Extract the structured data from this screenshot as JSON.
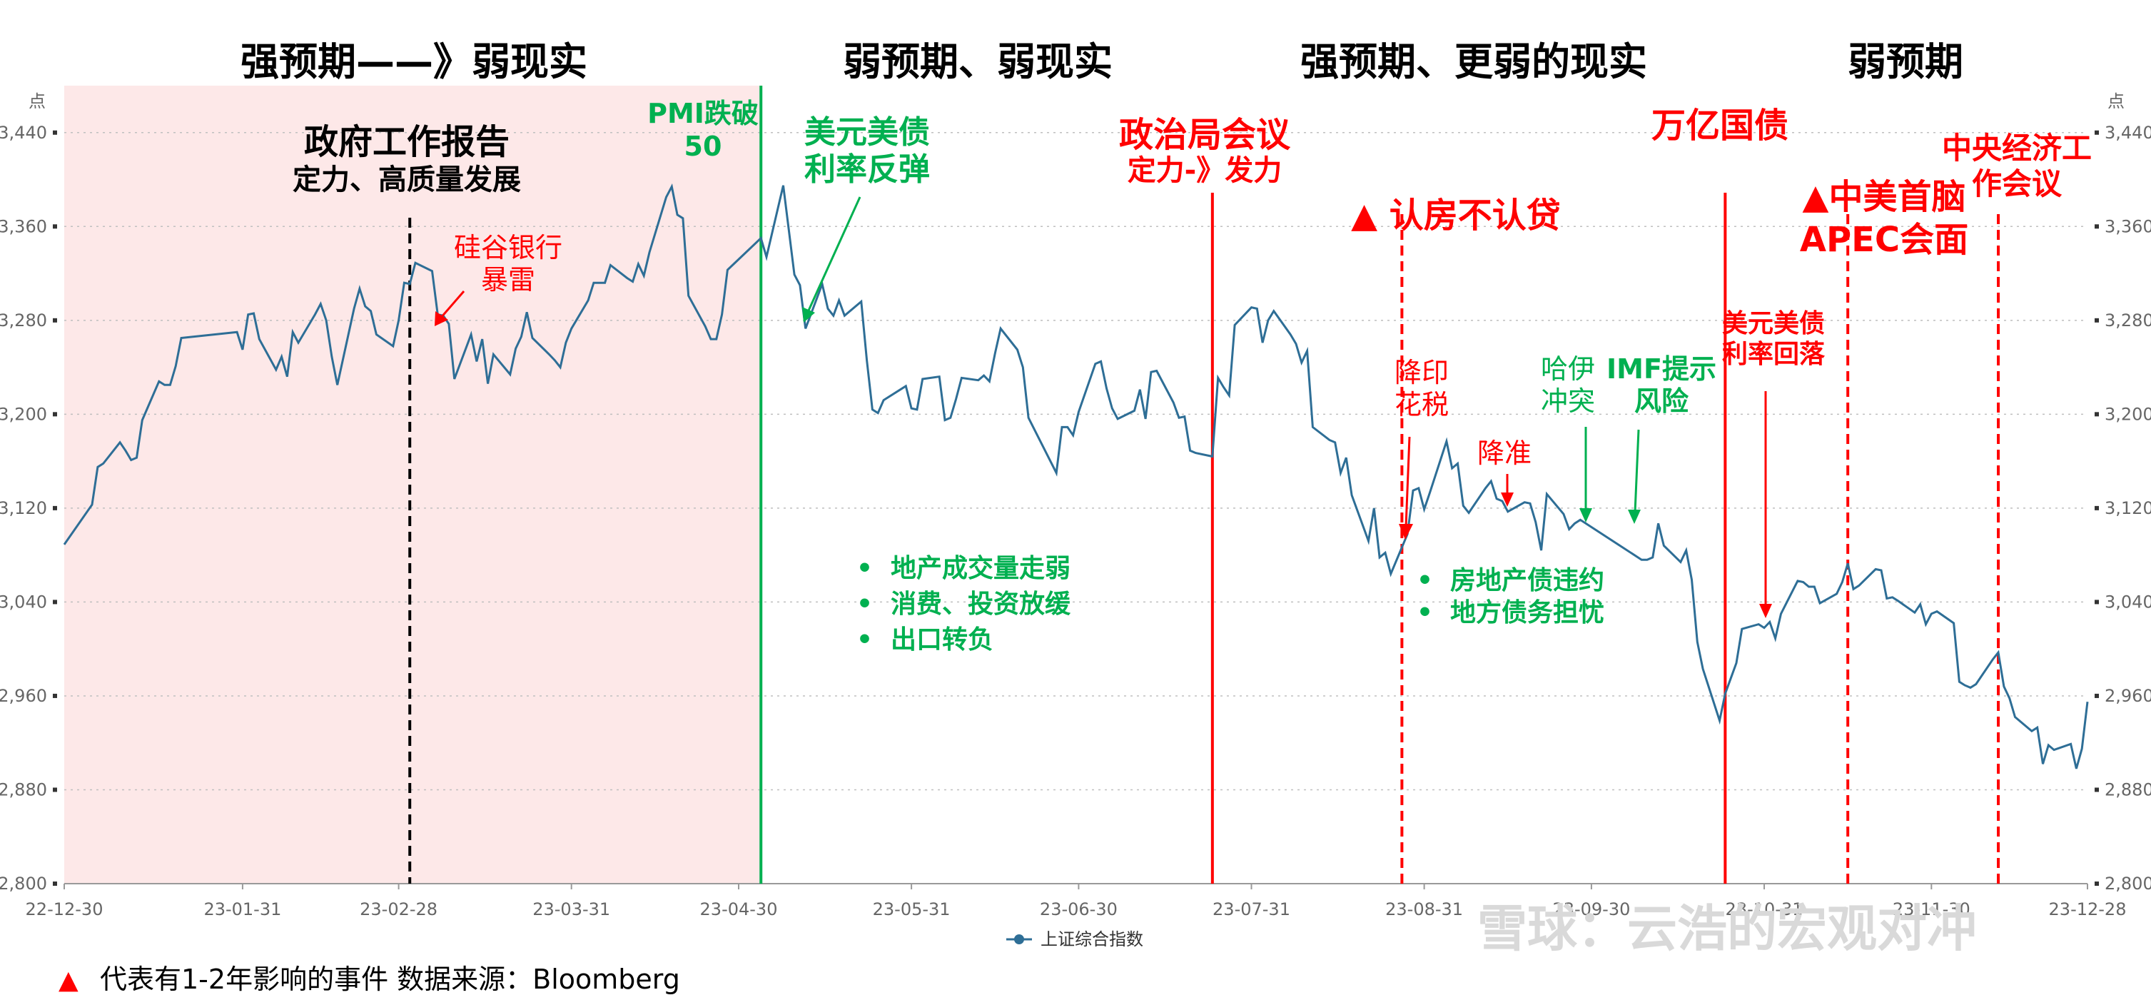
{
  "phases": [
    {
      "label": "强预期——》弱现实"
    },
    {
      "label": "弱预期、弱现实"
    },
    {
      "label": "强预期、更弱的现实"
    },
    {
      "label": "弱预期"
    }
  ],
  "annotations": {
    "gov_report_1": "政府工作报告",
    "gov_report_2": "定力、高质量发展",
    "svb_1": "硅谷银行",
    "svb_2": "暴雷",
    "pmi_1": "PMI跌破",
    "pmi_2": "50",
    "usd_rebound_1": "美元美债",
    "usd_rebound_2": "利率反弹",
    "politburo_1": "政治局会议",
    "politburo_2": "定力-》发力",
    "housing": "▲ 认房不认贷",
    "stamp_1": "降印",
    "stamp_2": "花税",
    "rrr": "降准",
    "hamas_1": "哈伊",
    "hamas_2": "冲突",
    "imf_1": "IMF提示",
    "imf_2": "风险",
    "trillion": "万亿国债",
    "usd_fall_1": "美元美债",
    "usd_fall_2": "利率回落",
    "apec_1": "▲中美首脑",
    "apec_2": "APEC会面",
    "cewc_1": "中央经济工",
    "cewc_2": "作会议",
    "bullets_mid": [
      "地产成交量走弱",
      "消费、投资放缓",
      "出口转负"
    ],
    "bullets_right": [
      "房地产债违约",
      "地方债务担忧"
    ],
    "bullet_symbol": "•"
  },
  "footer": {
    "marker": "▲",
    "note": "代表有1-2年影响的事件 数据来源：Bloomberg"
  },
  "watermark": "雪球：云浩的宏观对冲",
  "colors": {
    "line": "#2e6e96",
    "red": "#ff0000",
    "green": "#00b050",
    "shade": "#fde8e8",
    "grid": "#bfbfbf"
  },
  "chart_data": {
    "type": "line",
    "series": [
      {
        "name": "上证综合指数",
        "points": [
          [
            "2022-12-30",
            3089
          ],
          [
            "2023-01-04",
            3123
          ],
          [
            "2023-01-05",
            3155
          ],
          [
            "2023-01-06",
            3158
          ],
          [
            "2023-01-09",
            3176
          ],
          [
            "2023-01-10",
            3169
          ],
          [
            "2023-01-11",
            3161
          ],
          [
            "2023-01-12",
            3163
          ],
          [
            "2023-01-13",
            3195
          ],
          [
            "2023-01-16",
            3228
          ],
          [
            "2023-01-17",
            3225
          ],
          [
            "2023-01-18",
            3225
          ],
          [
            "2023-01-19",
            3241
          ],
          [
            "2023-01-20",
            3265
          ],
          [
            "2023-01-30",
            3270
          ],
          [
            "2023-01-31",
            3255
          ],
          [
            "2023-02-01",
            3285
          ],
          [
            "2023-02-02",
            3286
          ],
          [
            "2023-02-03",
            3264
          ],
          [
            "2023-02-06",
            3238
          ],
          [
            "2023-02-07",
            3249
          ],
          [
            "2023-02-08",
            3232
          ],
          [
            "2023-02-09",
            3270
          ],
          [
            "2023-02-10",
            3261
          ],
          [
            "2023-02-13",
            3285
          ],
          [
            "2023-02-14",
            3294
          ],
          [
            "2023-02-15",
            3280
          ],
          [
            "2023-02-16",
            3249
          ],
          [
            "2023-02-17",
            3225
          ],
          [
            "2023-02-20",
            3290
          ],
          [
            "2023-02-21",
            3307
          ],
          [
            "2023-02-22",
            3292
          ],
          [
            "2023-02-23",
            3288
          ],
          [
            "2023-02-24",
            3268
          ],
          [
            "2023-02-27",
            3258
          ],
          [
            "2023-02-28",
            3280
          ],
          [
            "2023-03-01",
            3312
          ],
          [
            "2023-03-02",
            3311
          ],
          [
            "2023-03-03",
            3329
          ],
          [
            "2023-03-06",
            3322
          ],
          [
            "2023-03-07",
            3285
          ],
          [
            "2023-03-08",
            3284
          ],
          [
            "2023-03-09",
            3277
          ],
          [
            "2023-03-10",
            3230
          ],
          [
            "2023-03-13",
            3268
          ],
          [
            "2023-03-14",
            3245
          ],
          [
            "2023-03-15",
            3264
          ],
          [
            "2023-03-16",
            3226
          ],
          [
            "2023-03-17",
            3251
          ],
          [
            "2023-03-20",
            3234
          ],
          [
            "2023-03-21",
            3256
          ],
          [
            "2023-03-22",
            3266
          ],
          [
            "2023-03-23",
            3287
          ],
          [
            "2023-03-24",
            3265
          ],
          [
            "2023-03-27",
            3251
          ],
          [
            "2023-03-28",
            3246
          ],
          [
            "2023-03-29",
            3240
          ],
          [
            "2023-03-30",
            3261
          ],
          [
            "2023-03-31",
            3273
          ],
          [
            "2023-04-03",
            3297
          ],
          [
            "2023-04-04",
            3312
          ],
          [
            "2023-04-06",
            3312
          ],
          [
            "2023-04-07",
            3327
          ],
          [
            "2023-04-10",
            3316
          ],
          [
            "2023-04-11",
            3313
          ],
          [
            "2023-04-12",
            3328
          ],
          [
            "2023-04-13",
            3318
          ],
          [
            "2023-04-14",
            3338
          ],
          [
            "2023-04-17",
            3385
          ],
          [
            "2023-04-18",
            3394
          ],
          [
            "2023-04-19",
            3370
          ],
          [
            "2023-04-20",
            3367
          ],
          [
            "2023-04-21",
            3301
          ],
          [
            "2023-04-24",
            3275
          ],
          [
            "2023-04-25",
            3264
          ],
          [
            "2023-04-26",
            3264
          ],
          [
            "2023-04-27",
            3285
          ],
          [
            "2023-04-28",
            3323
          ],
          [
            "2023-05-04",
            3350
          ],
          [
            "2023-05-05",
            3334
          ],
          [
            "2023-05-08",
            3395
          ],
          [
            "2023-05-09",
            3357
          ],
          [
            "2023-05-10",
            3319
          ],
          [
            "2023-05-11",
            3310
          ],
          [
            "2023-05-12",
            3273
          ],
          [
            "2023-05-15",
            3311
          ],
          [
            "2023-05-16",
            3290
          ],
          [
            "2023-05-17",
            3284
          ],
          [
            "2023-05-18",
            3297
          ],
          [
            "2023-05-19",
            3284
          ],
          [
            "2023-05-22",
            3296
          ],
          [
            "2023-05-23",
            3246
          ],
          [
            "2023-05-24",
            3204
          ],
          [
            "2023-05-25",
            3201
          ],
          [
            "2023-05-26",
            3212
          ],
          [
            "2023-05-29",
            3221
          ],
          [
            "2023-05-30",
            3224
          ],
          [
            "2023-05-31",
            3205
          ],
          [
            "2023-06-01",
            3204
          ],
          [
            "2023-06-02",
            3230
          ],
          [
            "2023-06-05",
            3232
          ],
          [
            "2023-06-06",
            3195
          ],
          [
            "2023-06-07",
            3197
          ],
          [
            "2023-06-08",
            3213
          ],
          [
            "2023-06-09",
            3231
          ],
          [
            "2023-06-12",
            3229
          ],
          [
            "2023-06-13",
            3233
          ],
          [
            "2023-06-14",
            3228
          ],
          [
            "2023-06-15",
            3252
          ],
          [
            "2023-06-16",
            3273
          ],
          [
            "2023-06-19",
            3255
          ],
          [
            "2023-06-20",
            3240
          ],
          [
            "2023-06-21",
            3197
          ],
          [
            "2023-06-26",
            3150
          ],
          [
            "2023-06-27",
            3189
          ],
          [
            "2023-06-28",
            3189
          ],
          [
            "2023-06-29",
            3182
          ],
          [
            "2023-06-30",
            3202
          ],
          [
            "2023-07-03",
            3243
          ],
          [
            "2023-07-04",
            3245
          ],
          [
            "2023-07-05",
            3222
          ],
          [
            "2023-07-06",
            3205
          ],
          [
            "2023-07-07",
            3196
          ],
          [
            "2023-07-10",
            3203
          ],
          [
            "2023-07-11",
            3221
          ],
          [
            "2023-07-12",
            3196
          ],
          [
            "2023-07-13",
            3236
          ],
          [
            "2023-07-14",
            3237
          ],
          [
            "2023-07-17",
            3210
          ],
          [
            "2023-07-18",
            3197
          ],
          [
            "2023-07-19",
            3198
          ],
          [
            "2023-07-20",
            3169
          ],
          [
            "2023-07-21",
            3167
          ],
          [
            "2023-07-24",
            3164
          ],
          [
            "2023-07-25",
            3231
          ],
          [
            "2023-07-26",
            3223
          ],
          [
            "2023-07-27",
            3216
          ],
          [
            "2023-07-28",
            3276
          ],
          [
            "2023-07-31",
            3291
          ],
          [
            "2023-08-01",
            3290
          ],
          [
            "2023-08-02",
            3261
          ],
          [
            "2023-08-03",
            3280
          ],
          [
            "2023-08-04",
            3288
          ],
          [
            "2023-08-07",
            3268
          ],
          [
            "2023-08-08",
            3260
          ],
          [
            "2023-08-09",
            3244
          ],
          [
            "2023-08-10",
            3254
          ],
          [
            "2023-08-11",
            3189
          ],
          [
            "2023-08-14",
            3178
          ],
          [
            "2023-08-15",
            3176
          ],
          [
            "2023-08-16",
            3150
          ],
          [
            "2023-08-17",
            3163
          ],
          [
            "2023-08-18",
            3131
          ],
          [
            "2023-08-21",
            3092
          ],
          [
            "2023-08-22",
            3120
          ],
          [
            "2023-08-23",
            3078
          ],
          [
            "2023-08-24",
            3082
          ],
          [
            "2023-08-25",
            3064
          ],
          [
            "2023-08-28",
            3098
          ],
          [
            "2023-08-29",
            3135
          ],
          [
            "2023-08-30",
            3137
          ],
          [
            "2023-08-31",
            3119
          ],
          [
            "2023-09-01",
            3133
          ],
          [
            "2023-09-04",
            3177
          ],
          [
            "2023-09-05",
            3154
          ],
          [
            "2023-09-06",
            3158
          ],
          [
            "2023-09-07",
            3122
          ],
          [
            "2023-09-08",
            3116
          ],
          [
            "2023-09-11",
            3137
          ],
          [
            "2023-09-12",
            3143
          ],
          [
            "2023-09-13",
            3128
          ],
          [
            "2023-09-14",
            3126
          ],
          [
            "2023-09-15",
            3117
          ],
          [
            "2023-09-18",
            3125
          ],
          [
            "2023-09-19",
            3124
          ],
          [
            "2023-09-20",
            3108
          ],
          [
            "2023-09-21",
            3084
          ],
          [
            "2023-09-22",
            3132
          ],
          [
            "2023-09-25",
            3115
          ],
          [
            "2023-09-26",
            3102
          ],
          [
            "2023-09-27",
            3107
          ],
          [
            "2023-09-28",
            3110
          ],
          [
            "2023-10-09",
            3076
          ],
          [
            "2023-10-10",
            3076
          ],
          [
            "2023-10-11",
            3078
          ],
          [
            "2023-10-12",
            3107
          ],
          [
            "2023-10-13",
            3088
          ],
          [
            "2023-10-16",
            3074
          ],
          [
            "2023-10-17",
            3084
          ],
          [
            "2023-10-18",
            3059
          ],
          [
            "2023-10-19",
            3006
          ],
          [
            "2023-10-20",
            2983
          ],
          [
            "2023-10-23",
            2939
          ],
          [
            "2023-10-24",
            2962
          ],
          [
            "2023-10-25",
            2975
          ],
          [
            "2023-10-26",
            2988
          ],
          [
            "2023-10-27",
            3017
          ],
          [
            "2023-10-30",
            3021
          ],
          [
            "2023-10-31",
            3018
          ],
          [
            "2023-11-01",
            3023
          ],
          [
            "2023-11-02",
            3009
          ],
          [
            "2023-11-03",
            3030
          ],
          [
            "2023-11-06",
            3058
          ],
          [
            "2023-11-07",
            3057
          ],
          [
            "2023-11-08",
            3053
          ],
          [
            "2023-11-09",
            3053
          ],
          [
            "2023-11-10",
            3039
          ],
          [
            "2023-11-13",
            3047
          ],
          [
            "2023-11-14",
            3057
          ],
          [
            "2023-11-15",
            3073
          ],
          [
            "2023-11-16",
            3051
          ],
          [
            "2023-11-17",
            3054
          ],
          [
            "2023-11-20",
            3068
          ],
          [
            "2023-11-21",
            3067
          ],
          [
            "2023-11-22",
            3043
          ],
          [
            "2023-11-23",
            3044
          ],
          [
            "2023-11-24",
            3041
          ],
          [
            "2023-11-27",
            3031
          ],
          [
            "2023-11-28",
            3038
          ],
          [
            "2023-11-29",
            3021
          ],
          [
            "2023-11-30",
            3030
          ],
          [
            "2023-12-01",
            3032
          ],
          [
            "2023-12-04",
            3022
          ],
          [
            "2023-12-05",
            2972
          ],
          [
            "2023-12-06",
            2969
          ],
          [
            "2023-12-07",
            2967
          ],
          [
            "2023-12-08",
            2970
          ],
          [
            "2023-12-11",
            2991
          ],
          [
            "2023-12-12",
            2997
          ],
          [
            "2023-12-13",
            2968
          ],
          [
            "2023-12-14",
            2958
          ],
          [
            "2023-12-15",
            2942
          ],
          [
            "2023-12-18",
            2930
          ],
          [
            "2023-12-19",
            2933
          ],
          [
            "2023-12-20",
            2902
          ],
          [
            "2023-12-21",
            2918
          ],
          [
            "2023-12-22",
            2914
          ],
          [
            "2023-12-25",
            2919
          ],
          [
            "2023-12-26",
            2898
          ],
          [
            "2023-12-27",
            2915
          ],
          [
            "2023-12-28",
            2955
          ]
        ]
      }
    ],
    "xlim": [
      "2022-12-30",
      "2023-12-28"
    ],
    "ylim": [
      2800,
      3480
    ],
    "ylabel": "点",
    "yticks": [
      2800,
      2880,
      2960,
      3040,
      3120,
      3200,
      3280,
      3360,
      3440
    ],
    "ytick_labels": [
      "2,800",
      "2,880",
      "2,960",
      "3,040",
      "3,120",
      "3,200",
      "3,280",
      "3,360",
      "3,440"
    ],
    "xticks": [
      "2022-12-30",
      "2023-01-31",
      "2023-02-28",
      "2023-03-31",
      "2023-04-30",
      "2023-05-31",
      "2023-06-30",
      "2023-07-31",
      "2023-08-31",
      "2023-09-30",
      "2023-10-31",
      "2023-11-30",
      "2023-12-28"
    ],
    "xtick_labels": [
      "22-12-30",
      "23-01-31",
      "23-02-28",
      "23-03-31",
      "23-04-30",
      "23-05-31",
      "23-06-30",
      "23-07-31",
      "23-08-31",
      "23-09-30",
      "23-10-31",
      "23-11-30",
      "23-12-28"
    ],
    "shaded_range": [
      "2022-12-30",
      "2023-05-04"
    ],
    "event_lines": [
      {
        "date": "2023-03-02",
        "color": "#000000",
        "style": "dashed"
      },
      {
        "date": "2023-05-04",
        "color": "#00b050",
        "style": "solid"
      },
      {
        "date": "2023-07-24",
        "color": "#ff0000",
        "style": "solid"
      },
      {
        "date": "2023-08-27",
        "color": "#ff0000",
        "style": "dashed"
      },
      {
        "date": "2023-10-24",
        "color": "#ff0000",
        "style": "solid"
      },
      {
        "date": "2023-11-15",
        "color": "#ff0000",
        "style": "dashed"
      },
      {
        "date": "2023-12-12",
        "color": "#ff0000",
        "style": "dashed"
      }
    ],
    "grid": true,
    "legend": "bottom-center"
  }
}
